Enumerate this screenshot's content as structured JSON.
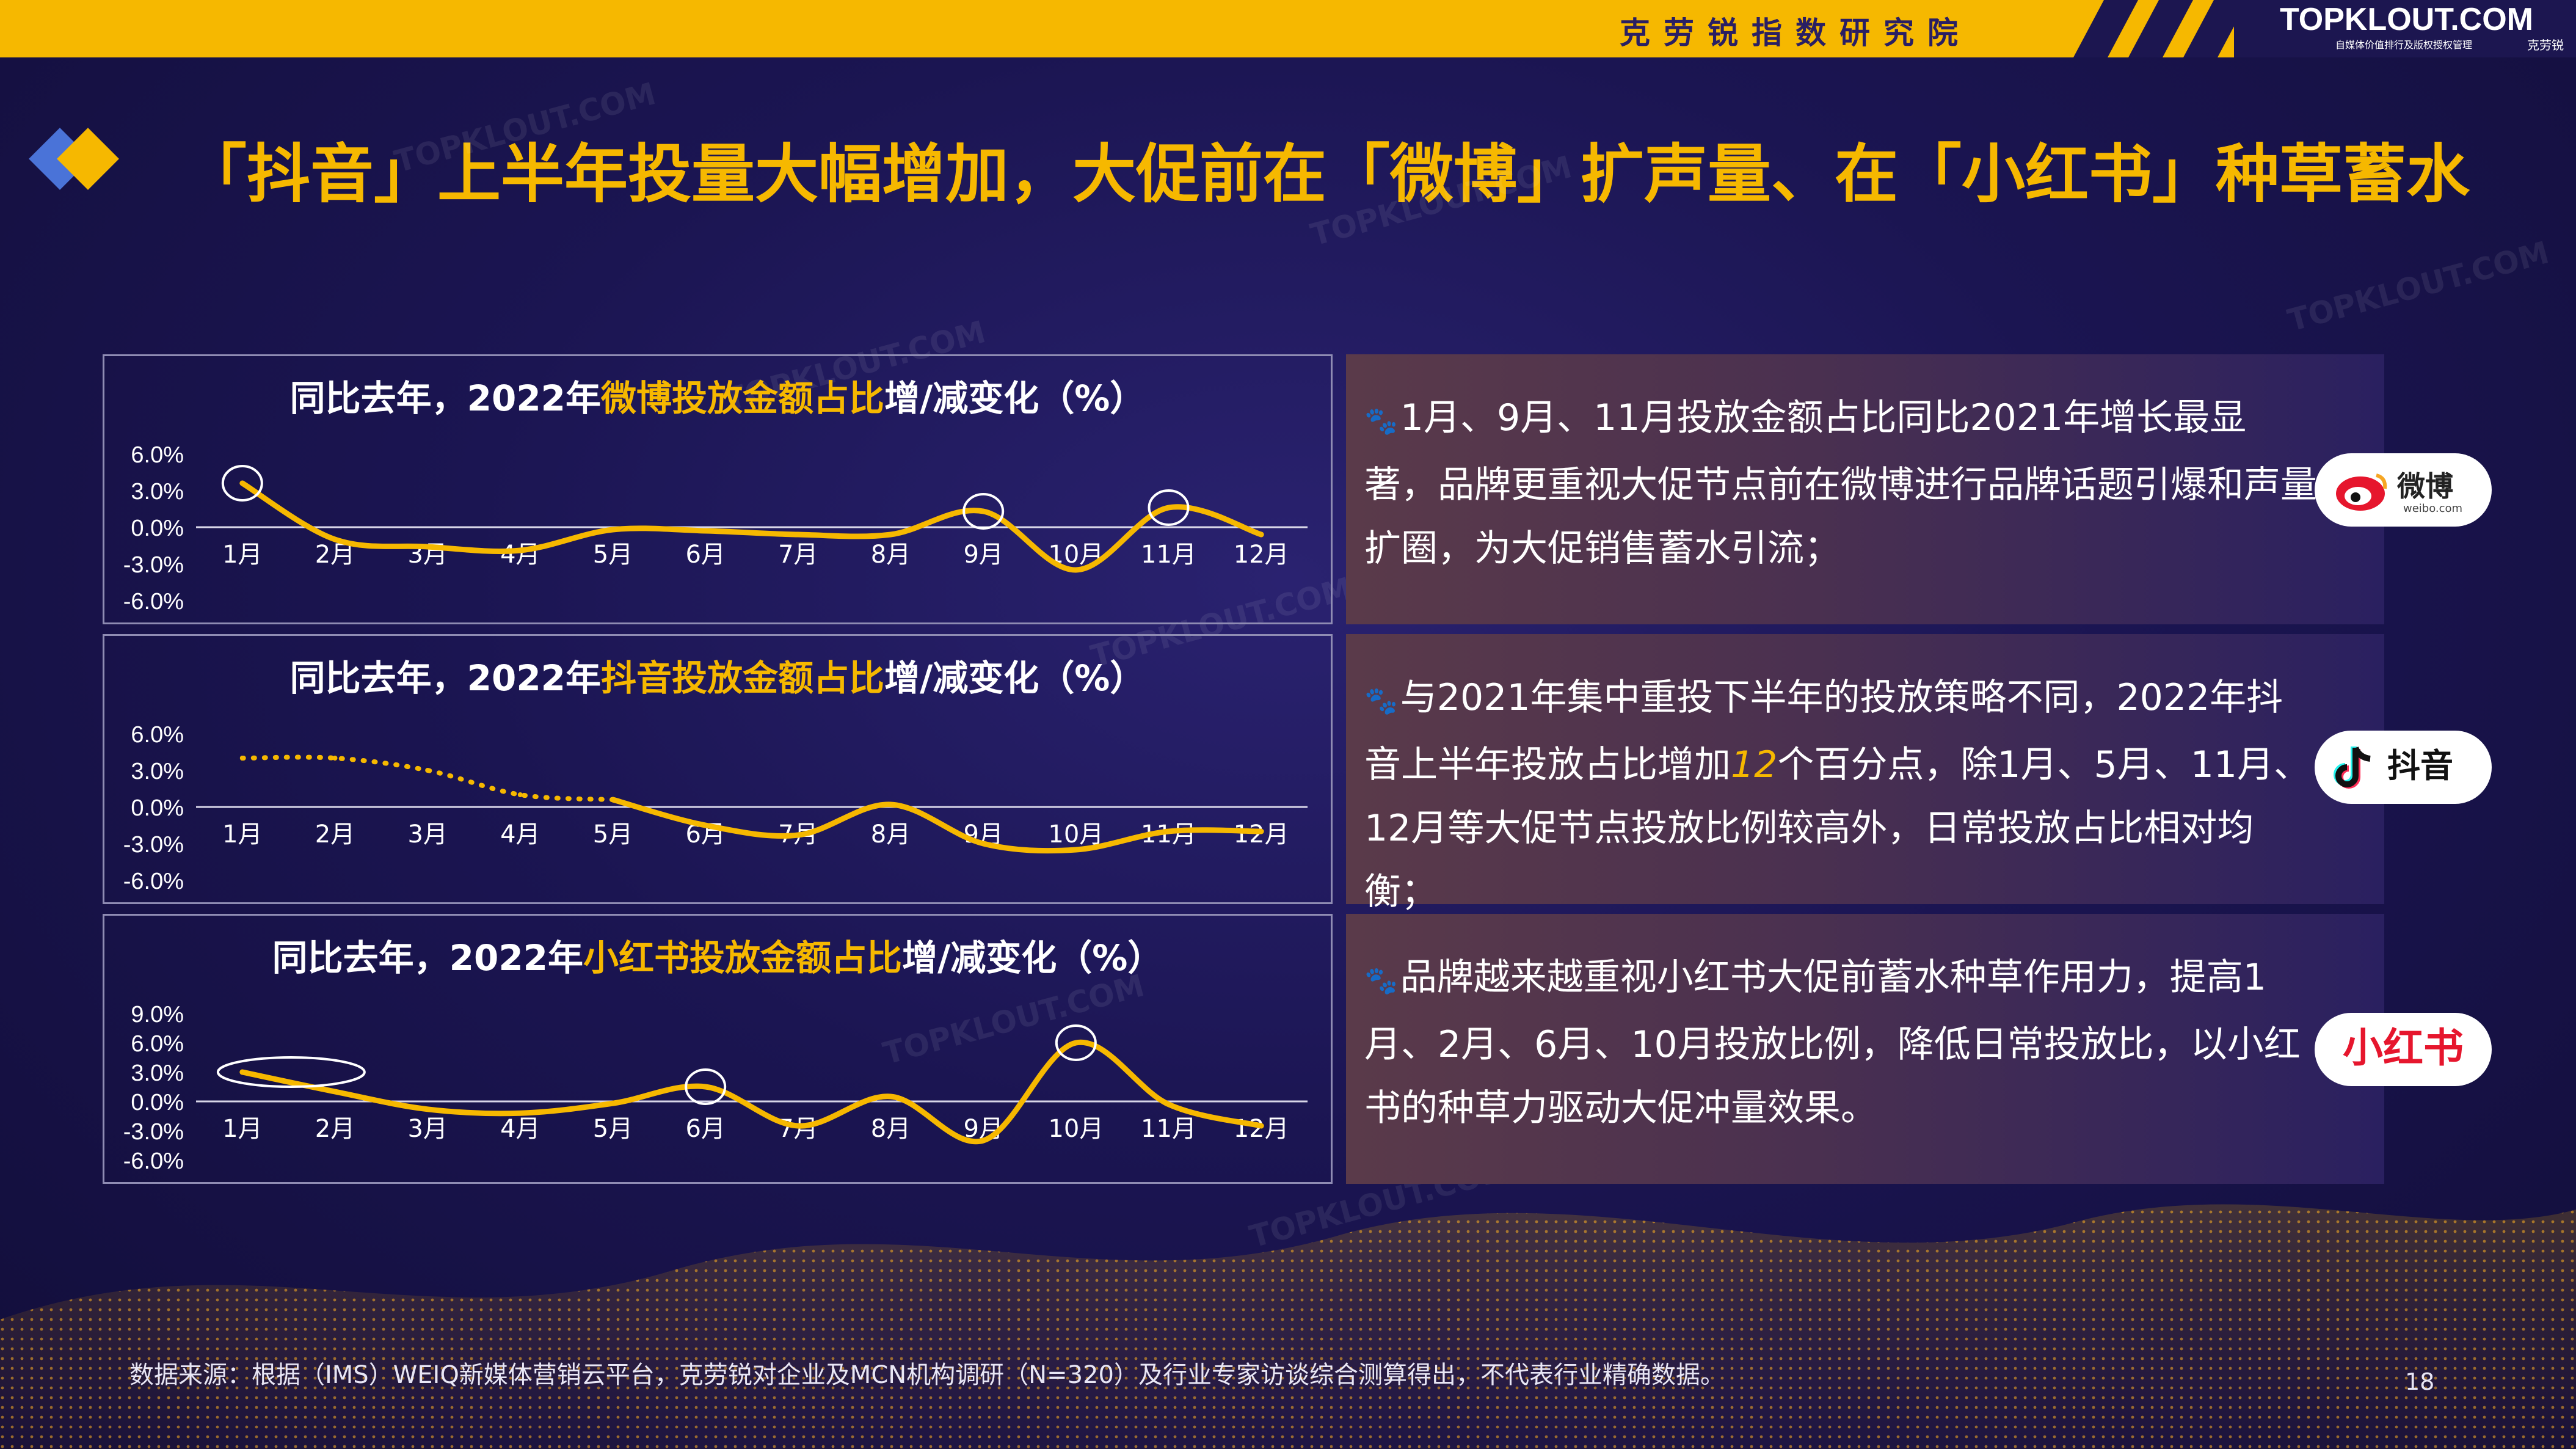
{
  "header": {
    "institute": "克劳锐指数研究院",
    "logo_main": "TOPKLOUT.COM",
    "logo_sub": "克劳锐",
    "logo_tag": "自媒体价值排行及版权授权管理"
  },
  "page_title": "「抖音」上半年投量大幅增加，大促前在「微博」扩声量、在「小红书」种草蓄水",
  "colors": {
    "accent": "#f6b800",
    "background": "#1b1552",
    "diamond_blue": "#4a73d8"
  },
  "watermark": "TOPKLOUT.COM",
  "chart_data": [
    {
      "type": "line",
      "title": "同比去年，2022年微博投放金额占比增/减变化（%）",
      "title_parts": [
        "同比去年，2022年",
        "微博投放金额占比",
        "增/减变化（%）"
      ],
      "categories": [
        "1月",
        "2月",
        "3月",
        "4月",
        "5月",
        "6月",
        "7月",
        "8月",
        "9月",
        "10月",
        "11月",
        "12月"
      ],
      "series": [
        {
          "values": [
            3.6,
            -1.0,
            -1.6,
            -1.9,
            -0.2,
            -0.3,
            -0.6,
            -0.6,
            1.3,
            -3.5,
            1.6,
            -0.6
          ]
        }
      ],
      "yticks": [
        "6.0%",
        "3.0%",
        "0.0%",
        "-3.0%",
        "-6.0%"
      ],
      "ylim": [
        -6,
        6
      ],
      "highlights": [
        "1月",
        "9月",
        "11月"
      ],
      "grid": false
    },
    {
      "type": "line",
      "title": "同比去年，2022年抖音投放金额占比增/减变化（%）",
      "title_parts": [
        "同比去年，2022年",
        "抖音投放金额占比",
        "增/减变化（%）"
      ],
      "categories": [
        "1月",
        "2月",
        "3月",
        "4月",
        "5月",
        "6月",
        "7月",
        "8月",
        "9月",
        "10月",
        "11月",
        "12月"
      ],
      "series": [
        {
          "values": [
            4.0,
            4.0,
            3.0,
            1.0,
            0.6,
            -1.5,
            -2.3,
            0.2,
            -3.0,
            -3.5,
            -2.0,
            -2.0
          ]
        }
      ],
      "dotted_until": "5月",
      "yticks": [
        "6.0%",
        "3.0%",
        "0.0%",
        "-3.0%",
        "-6.0%"
      ],
      "ylim": [
        -6,
        6
      ],
      "highlights": [],
      "grid": false
    },
    {
      "type": "line",
      "title": "同比去年，2022年小红书投放金额占比增/减变化（%）",
      "title_parts": [
        "同比去年，2022年",
        "小红书投放金额占比",
        "增/减变化（%）"
      ],
      "categories": [
        "1月",
        "2月",
        "3月",
        "4月",
        "5月",
        "6月",
        "7月",
        "8月",
        "9月",
        "10月",
        "11月",
        "12月"
      ],
      "series": [
        {
          "values": [
            3.0,
            1.0,
            -0.8,
            -1.2,
            -0.2,
            1.5,
            -2.5,
            0.5,
            -4.0,
            6.0,
            -0.3,
            -2.5
          ]
        }
      ],
      "yticks": [
        "9.0%",
        "6.0%",
        "3.0%",
        "0.0%",
        "-3.0%",
        "-6.0%"
      ],
      "ylim": [
        -6,
        9
      ],
      "highlights": [
        "1月",
        "6月",
        "10月"
      ],
      "grid": false
    }
  ],
  "panels": [
    {
      "brand_name": "微博",
      "brand_sub": "weibo.com",
      "text": "1月、9月、11月投放金额占比同比2021年增长最显著，品牌更重视大促节点前在微博进行品牌话题引爆和声量扩圈，为大促销售蓄水引流；"
    },
    {
      "brand_name": "抖音",
      "text_before": "与2021年集中重投下半年的投放策略不同，2022年抖音上半年投放占比增加",
      "text_em": "12",
      "text_after": "个百分点，除1月、5月、11月、12月等大促节点投放比例较高外，日常投放占比相对均衡；"
    },
    {
      "brand_name": "小红书",
      "text": "品牌越来越重视小红书大促前蓄水种草作用力，提高1月、2月、6月、10月投放比例，降低日常投放比，以小红书的种草力驱动大促冲量效果。"
    }
  ],
  "footnote": "数据来源：根据（IMS）WEIQ新媒体营销云平台，克劳锐对企业及MCN机构调研（N=320）及行业专家访谈综合测算得出，不代表行业精确数据。",
  "page_number": "18"
}
